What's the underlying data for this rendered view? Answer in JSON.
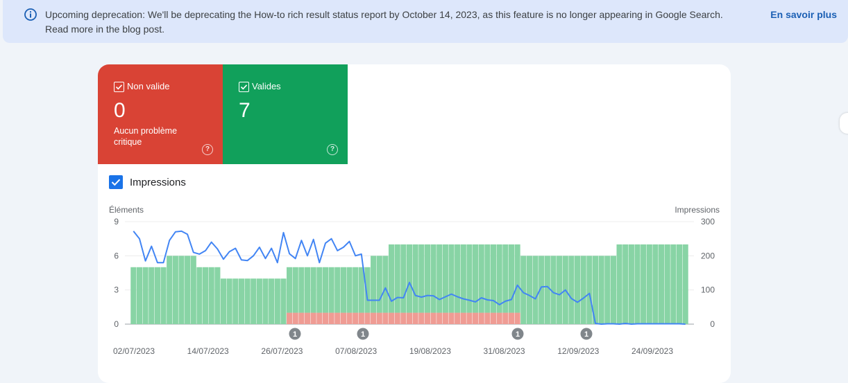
{
  "banner": {
    "text": "Upcoming deprecation: We'll be deprecating the How-to rich result status report by October 14, 2023, as this feature is no longer appearing in Google Search. Read more in the blog post.",
    "link": "En savoir plus",
    "icon": "info-icon"
  },
  "tiles": {
    "invalid": {
      "label": "Non valide",
      "value": "0",
      "description": "Aucun problème critique",
      "color": "#d94335"
    },
    "valid": {
      "label": "Valides",
      "value": "7",
      "color": "#11a05b"
    }
  },
  "impressions_toggle": {
    "label": "Impressions",
    "checked": true
  },
  "chart_data": {
    "type": "bar",
    "left_axis_title": "Éléments",
    "right_axis_title": "Impressions",
    "left_ticks": [
      "9",
      "6",
      "3",
      "0"
    ],
    "right_ticks": [
      "300",
      "200",
      "100",
      "0"
    ],
    "x_tick_labels": [
      "02/07/2023",
      "14/07/2023",
      "26/07/2023",
      "07/08/2023",
      "19/08/2023",
      "31/08/2023",
      "12/09/2023",
      "24/09/2023"
    ],
    "ylim_left": [
      0,
      9
    ],
    "ylim_right": [
      0,
      300
    ],
    "series": [
      {
        "name": "Valides",
        "color": "#88d4a5",
        "values": [
          5,
          5,
          5,
          5,
          5,
          5,
          6,
          6,
          6,
          6,
          6,
          5,
          5,
          5,
          5,
          4,
          4,
          4,
          4,
          4,
          4,
          4,
          4,
          4,
          4,
          4,
          4,
          4,
          4,
          4,
          4,
          4,
          4,
          4,
          4,
          4,
          4,
          4,
          4,
          4,
          5,
          5,
          5,
          6,
          6,
          6,
          6,
          6,
          6,
          6,
          6,
          6,
          6,
          6,
          6,
          6,
          6,
          6,
          6,
          6,
          6,
          6,
          6,
          6,
          6,
          6,
          6,
          6,
          6,
          6,
          6,
          6,
          6,
          6,
          6,
          6,
          6,
          6,
          6,
          6,
          6,
          7,
          7,
          7,
          7,
          7,
          7,
          7,
          7,
          7,
          7,
          7,
          7
        ]
      },
      {
        "name": "Non valide",
        "color": "#ef9c94",
        "values": [
          0,
          0,
          0,
          0,
          0,
          0,
          0,
          0,
          0,
          0,
          0,
          0,
          0,
          0,
          0,
          0,
          0,
          0,
          0,
          0,
          0,
          0,
          0,
          0,
          0,
          0,
          1,
          1,
          1,
          1,
          1,
          1,
          1,
          1,
          1,
          1,
          1,
          1,
          1,
          1,
          1,
          1,
          1,
          1,
          1,
          1,
          1,
          1,
          1,
          1,
          1,
          1,
          1,
          1,
          1,
          1,
          1,
          1,
          1,
          1,
          1,
          1,
          1,
          1,
          1,
          0,
          0,
          0,
          0,
          0,
          0,
          0,
          0,
          0,
          0,
          0,
          0,
          0,
          0,
          0,
          0,
          0,
          0,
          0,
          0,
          0,
          0,
          0,
          0,
          0,
          0,
          0,
          0
        ]
      },
      {
        "name": "Impressions",
        "color": "#4285f4",
        "axis": "right",
        "values": [
          272,
          250,
          185,
          228,
          180,
          180,
          245,
          270,
          272,
          263,
          210,
          205,
          215,
          240,
          220,
          190,
          212,
          222,
          188,
          186,
          200,
          225,
          192,
          222,
          180,
          268,
          206,
          192,
          245,
          200,
          248,
          180,
          237,
          250,
          215,
          225,
          242,
          200,
          205,
          70,
          70,
          70,
          106,
          67,
          78,
          77,
          122,
          84,
          79,
          84,
          83,
          72,
          80,
          88,
          80,
          74,
          70,
          65,
          77,
          71,
          69,
          57,
          67,
          72,
          114,
          92,
          84,
          74,
          109,
          110,
          92,
          86,
          100,
          75,
          64,
          76,
          90,
          2,
          0,
          1,
          1,
          0,
          2,
          0,
          1,
          1,
          1,
          1,
          1,
          1,
          1,
          1,
          0
        ]
      }
    ],
    "annotations": [
      {
        "label": "1",
        "x": "25/07/2023"
      },
      {
        "label": "1",
        "x": "04/08/2023"
      },
      {
        "label": "1",
        "x": "31/08/2023"
      },
      {
        "label": "1",
        "x": "11/09/2023"
      }
    ]
  }
}
